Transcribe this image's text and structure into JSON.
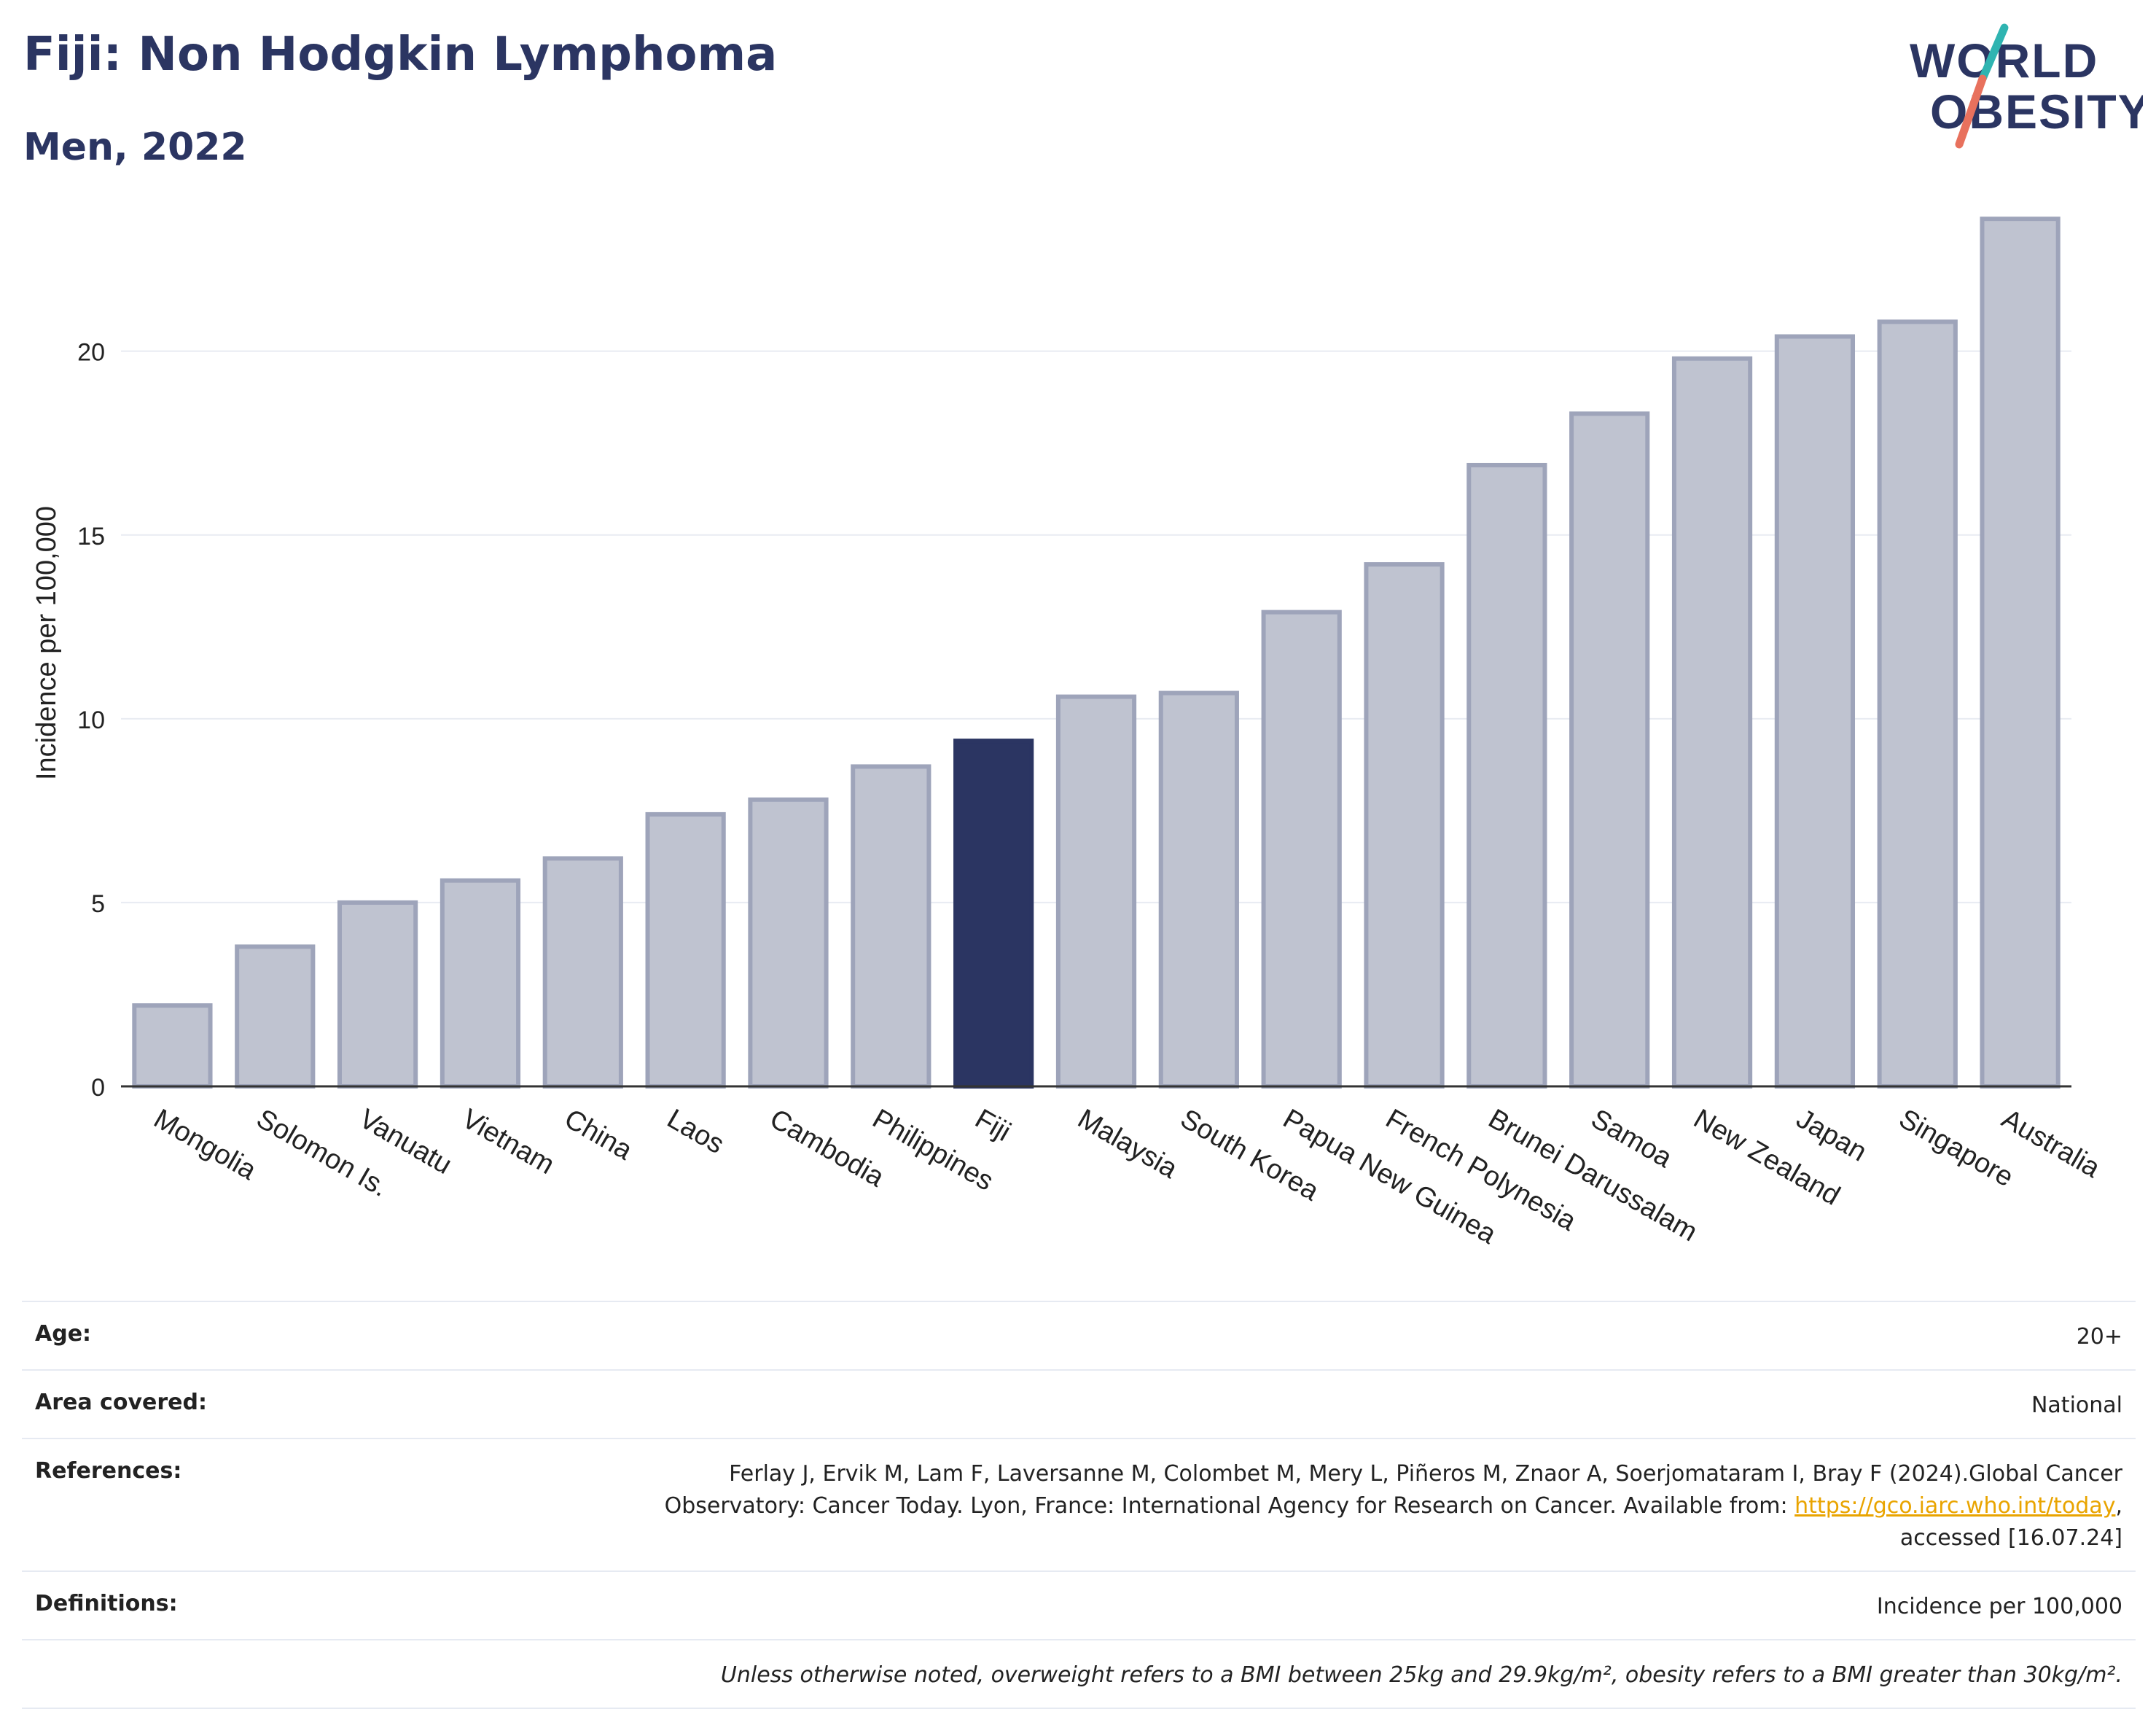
{
  "header": {
    "title": "Fiji: Non Hodgkin Lymphoma",
    "subtitle": "Men, 2022"
  },
  "logo": {
    "line1": "WORLD",
    "line2": "OBESITY",
    "colors": {
      "text": "#2b3562",
      "slash_top": "#2fb4b1",
      "slash_bottom": "#e8715d"
    }
  },
  "chart_data": {
    "type": "bar",
    "ylabel": "Incidence per 100,000",
    "xlabel": "",
    "ylim": [
      0,
      24
    ],
    "yticks": [
      0,
      5,
      10,
      15,
      20
    ],
    "grid": true,
    "highlight": "Fiji",
    "colors": {
      "bar": "#bfc3d0",
      "bar_edge": "#9ea4ba",
      "highlight": "#2b3562"
    },
    "categories": [
      "Mongolia",
      "Solomon Is.",
      "Vanuatu",
      "Vietnam",
      "China",
      "Laos",
      "Cambodia",
      "Philippines",
      "Fiji",
      "Malaysia",
      "South Korea",
      "Papua New Guinea",
      "French Polynesia",
      "Brunei Darussalam",
      "Samoa",
      "New Zealand",
      "Japan",
      "Singapore",
      "Australia"
    ],
    "values": [
      2.2,
      3.8,
      5.0,
      5.6,
      6.2,
      7.4,
      7.8,
      8.7,
      9.4,
      10.6,
      10.7,
      12.9,
      14.2,
      16.9,
      18.3,
      19.8,
      20.4,
      20.8,
      23.6
    ]
  },
  "meta": {
    "age": {
      "label": "Age:",
      "value": "20+"
    },
    "area": {
      "label": "Area covered:",
      "value": "National"
    },
    "references": {
      "label": "References:",
      "text_line1": "Ferlay J, Ervik M, Lam F, Laversanne M, Colombet M, Mery L, Piñeros M, Znaor A, Soerjomataram I, Bray F (2024).Global Cancer",
      "text_line2": "Observatory: Cancer Today. Lyon, France: International Agency for Research on Cancer. Available from: ",
      "link": "https://gco.iarc.who.int/today",
      "text_after_link": ",",
      "text_line3": "accessed [16.07.24]"
    },
    "definitions": {
      "label": "Definitions:",
      "value": "Incidence per 100,000"
    },
    "note": "Unless otherwise noted, overweight refers to a BMI between 25kg and 29.9kg/m², obesity refers to a BMI greater than 30kg/m²."
  }
}
